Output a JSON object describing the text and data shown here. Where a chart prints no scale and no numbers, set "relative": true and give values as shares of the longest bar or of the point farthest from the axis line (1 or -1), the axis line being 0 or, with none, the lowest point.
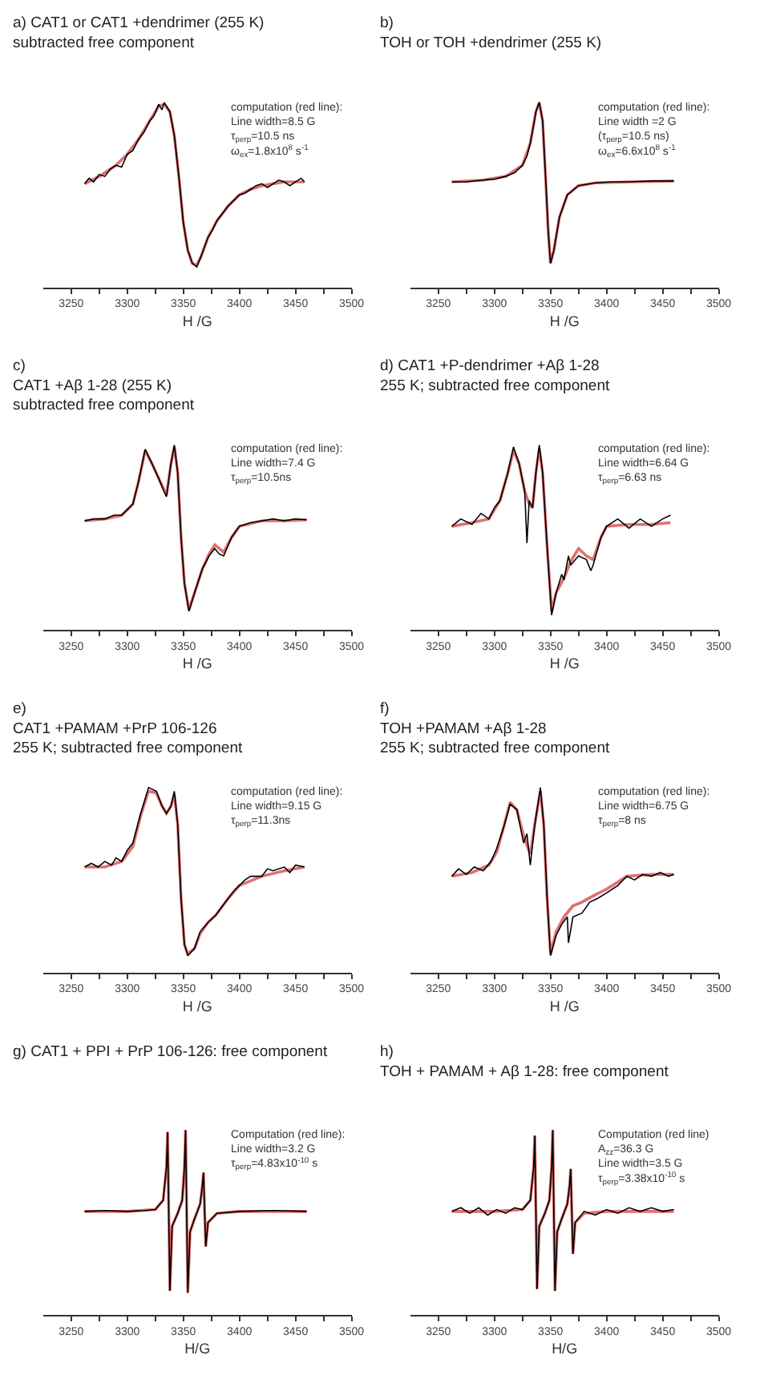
{
  "chart_data": [
    {
      "type": "line",
      "title": "a) CAT1 or CAT1 +dendrimer (255 K)\nsubtracted free component",
      "xlabel": "H /G",
      "relative": true,
      "xlim": [
        3225,
        3500
      ],
      "xticks": [
        3250,
        {
          "value": 3275,
          "label": null
        },
        3300,
        {
          "value": 3325,
          "label": null
        },
        3350,
        {
          "value": 3375,
          "label": null
        },
        3400,
        {
          "value": 3425,
          "label": null
        },
        3450,
        {
          "value": 3475,
          "label": null
        },
        3500
      ],
      "annotations": [
        "computation (red line):\nLine width=8.5 G\nτ$_{perp}$=10.5 ns\nω$_{ex}$=1.8x10$^{8}$ s$^{-1}$"
      ],
      "series": [
        {
          "color": "#000000",
          "x": [
            3262,
            3266,
            3270,
            3275,
            3280,
            3285,
            3290,
            3295,
            3300,
            3305,
            3310,
            3315,
            3320,
            3324,
            3328,
            3331,
            3333,
            3336,
            3338,
            3342,
            3346,
            3350,
            3354,
            3358,
            3362,
            3366,
            3372,
            3376,
            3380,
            3385,
            3390,
            3395,
            3400,
            3405,
            3410,
            3415,
            3420,
            3425,
            3430,
            3435,
            3440,
            3445,
            3450,
            3455,
            3458
          ],
          "values": [
            0.56,
            0.59,
            0.57,
            0.61,
            0.6,
            0.64,
            0.66,
            0.65,
            0.72,
            0.74,
            0.8,
            0.84,
            0.9,
            0.93,
            0.99,
            0.96,
            1.0,
            0.97,
            0.95,
            0.82,
            0.6,
            0.35,
            0.2,
            0.13,
            0.11,
            0.17,
            0.27,
            0.31,
            0.36,
            0.4,
            0.44,
            0.47,
            0.5,
            0.51,
            0.53,
            0.55,
            0.56,
            0.54,
            0.56,
            0.58,
            0.57,
            0.55,
            0.57,
            0.59,
            0.57
          ]
        },
        {
          "color": "#e07070",
          "x": [
            3262,
            3275,
            3290,
            3300,
            3310,
            3320,
            3328,
            3333,
            3338,
            3342,
            3346,
            3350,
            3354,
            3358,
            3362,
            3366,
            3372,
            3380,
            3390,
            3400,
            3410,
            3420,
            3430,
            3440,
            3450,
            3458
          ],
          "values": [
            0.56,
            0.6,
            0.66,
            0.72,
            0.8,
            0.9,
            0.98,
            0.99,
            0.95,
            0.82,
            0.6,
            0.35,
            0.2,
            0.13,
            0.12,
            0.17,
            0.27,
            0.36,
            0.44,
            0.5,
            0.53,
            0.55,
            0.56,
            0.57,
            0.57,
            0.57
          ]
        }
      ]
    },
    {
      "type": "line",
      "title": "b)\nTOH or TOH +dendrimer (255 K)",
      "xlabel": "H /G",
      "relative": true,
      "xlim": [
        3225,
        3500
      ],
      "xticks": [
        3250,
        {
          "value": 3275,
          "label": null
        },
        3300,
        {
          "value": 3325,
          "label": null
        },
        3350,
        {
          "value": 3375,
          "label": null
        },
        3400,
        {
          "value": 3425,
          "label": null
        },
        3450,
        {
          "value": 3475,
          "label": null
        },
        3500
      ],
      "annotations": [
        "computation (red line):\nLine width =2 G\n(τ$_{perp}$=10.5 ns)\nω$_{ex}$=6.6x10$^{8}$ s$^{-1}$"
      ],
      "series": [
        {
          "color": "#000000",
          "x": [
            3262,
            3275,
            3290,
            3300,
            3310,
            3318,
            3325,
            3329,
            3332,
            3335,
            3337,
            3340,
            3343,
            3346,
            3348,
            3350,
            3353,
            3358,
            3365,
            3375,
            3390,
            3405,
            3420,
            3440,
            3460
          ],
          "values": [
            0.57,
            0.57,
            0.58,
            0.585,
            0.6,
            0.62,
            0.66,
            0.71,
            0.78,
            0.88,
            0.95,
            1.0,
            0.9,
            0.55,
            0.3,
            0.13,
            0.2,
            0.38,
            0.5,
            0.55,
            0.565,
            0.57,
            0.57,
            0.575,
            0.575
          ]
        },
        {
          "color": "#e07070",
          "x": [
            3262,
            3290,
            3310,
            3325,
            3332,
            3337,
            3340,
            3343,
            3346,
            3348,
            3350,
            3353,
            3358,
            3365,
            3375,
            3390,
            3420,
            3460
          ],
          "values": [
            0.57,
            0.58,
            0.6,
            0.66,
            0.78,
            0.95,
            1.0,
            0.9,
            0.55,
            0.3,
            0.13,
            0.2,
            0.38,
            0.5,
            0.55,
            0.565,
            0.57,
            0.575
          ]
        }
      ]
    },
    {
      "type": "line",
      "title": "c)\nCAT1 +Aβ 1-28 (255 K)\nsubtracted free component",
      "xlabel": "H /G",
      "relative": true,
      "xlim": [
        3225,
        3500
      ],
      "xticks": [
        3250,
        {
          "value": 3275,
          "label": null
        },
        3300,
        {
          "value": 3325,
          "label": null
        },
        3350,
        {
          "value": 3375,
          "label": null
        },
        3400,
        {
          "value": 3425,
          "label": null
        },
        3450,
        {
          "value": 3475,
          "label": null
        },
        3500
      ],
      "annotations": [
        "computation (red line):\nLine width=7.4 G\nτ$_{perp}$=10.5ns"
      ],
      "series": [
        {
          "color": "#000000",
          "x": [
            3262,
            3270,
            3280,
            3288,
            3295,
            3300,
            3305,
            3310,
            3316,
            3322,
            3328,
            3332,
            3335,
            3339,
            3342,
            3345,
            3348,
            3351,
            3355,
            3360,
            3367,
            3373,
            3378,
            3382,
            3386,
            3393,
            3400,
            3410,
            3420,
            3430,
            3440,
            3450,
            3460
          ],
          "values": [
            0.59,
            0.6,
            0.6,
            0.62,
            0.62,
            0.65,
            0.68,
            0.8,
            0.977,
            0.9,
            0.82,
            0.76,
            0.72,
            0.9,
            1.0,
            0.85,
            0.5,
            0.25,
            0.1,
            0.2,
            0.33,
            0.4,
            0.44,
            0.41,
            0.4,
            0.5,
            0.56,
            0.58,
            0.59,
            0.6,
            0.59,
            0.6,
            0.595
          ]
        },
        {
          "color": "#e07070",
          "x": [
            3262,
            3280,
            3295,
            3305,
            3310,
            3316,
            3322,
            3328,
            3335,
            3339,
            3342,
            3345,
            3348,
            3351,
            3355,
            3360,
            3367,
            3373,
            3378,
            3386,
            3393,
            3400,
            3420,
            3440,
            3460
          ],
          "values": [
            0.59,
            0.6,
            0.62,
            0.68,
            0.8,
            0.97,
            0.9,
            0.82,
            0.73,
            0.9,
            0.99,
            0.85,
            0.5,
            0.25,
            0.11,
            0.2,
            0.33,
            0.41,
            0.46,
            0.42,
            0.5,
            0.56,
            0.59,
            0.59,
            0.595
          ]
        }
      ]
    },
    {
      "type": "line",
      "title": "d) CAT1 +P-dendrimer +Aβ 1-28\n255 K; subtracted free component",
      "xlabel": "H /G",
      "relative": true,
      "xlim": [
        3225,
        3500
      ],
      "xticks": [
        3250,
        {
          "value": 3275,
          "label": null
        },
        3300,
        {
          "value": 3325,
          "label": null
        },
        3350,
        {
          "value": 3375,
          "label": null
        },
        3400,
        {
          "value": 3425,
          "label": null
        },
        3450,
        {
          "value": 3475,
          "label": null
        },
        3500
      ],
      "annotations": [
        "computation (red line):\nLine width=6.64 G\nτ$_{perp}$=6.63 ns"
      ],
      "series": [
        {
          "color": "#000000",
          "x": [
            3262,
            3270,
            3280,
            3288,
            3295,
            3300,
            3305,
            3312,
            3317,
            3322,
            3327,
            3329,
            3331,
            3334,
            3337,
            3340,
            3343,
            3347,
            3351,
            3355,
            3360,
            3362,
            3366,
            3368,
            3375,
            3382,
            3386,
            3388,
            3395,
            3400,
            3410,
            3420,
            3430,
            3440,
            3450,
            3457
          ],
          "values": [
            0.56,
            0.6,
            0.57,
            0.63,
            0.6,
            0.66,
            0.7,
            0.85,
            0.99,
            0.9,
            0.75,
            0.47,
            0.7,
            0.66,
            0.85,
            1.0,
            0.85,
            0.45,
            0.08,
            0.2,
            0.3,
            0.27,
            0.4,
            0.35,
            0.4,
            0.38,
            0.32,
            0.35,
            0.5,
            0.56,
            0.6,
            0.55,
            0.6,
            0.56,
            0.6,
            0.62
          ]
        },
        {
          "color": "#e07070",
          "x": [
            3262,
            3280,
            3295,
            3305,
            3312,
            3317,
            3322,
            3327,
            3331,
            3334,
            3337,
            3340,
            3343,
            3347,
            3351,
            3355,
            3362,
            3368,
            3375,
            3382,
            3388,
            3395,
            3400,
            3420,
            3440,
            3457
          ],
          "values": [
            0.56,
            0.58,
            0.6,
            0.7,
            0.85,
            0.97,
            0.9,
            0.75,
            0.68,
            0.66,
            0.85,
            0.98,
            0.85,
            0.45,
            0.1,
            0.2,
            0.28,
            0.37,
            0.44,
            0.4,
            0.38,
            0.5,
            0.56,
            0.57,
            0.57,
            0.58
          ]
        }
      ]
    },
    {
      "type": "line",
      "title": "e)\nCAT1 +PAMAM +PrP 106-126\n255 K; subtracted free component",
      "xlabel": "H /G",
      "relative": true,
      "xlim": [
        3225,
        3500
      ],
      "xticks": [
        3250,
        {
          "value": 3275,
          "label": null
        },
        3300,
        {
          "value": 3325,
          "label": null
        },
        3350,
        {
          "value": 3375,
          "label": null
        },
        3400,
        {
          "value": 3425,
          "label": null
        },
        3450,
        {
          "value": 3475,
          "label": null
        },
        3500
      ],
      "annotations": [
        "computation (red line):\nLine width=9.15 G\nτ$_{perp}$=11.3ns"
      ],
      "series": [
        {
          "color": "#000000",
          "x": [
            3262,
            3268,
            3274,
            3280,
            3286,
            3290,
            3295,
            3300,
            3305,
            3312,
            3319,
            3326,
            3331,
            3335,
            3339,
            3342,
            3345,
            3348,
            3351,
            3354,
            3360,
            3365,
            3372,
            3379,
            3385,
            3390,
            3395,
            3400,
            3405,
            3410,
            3420,
            3425,
            3430,
            3440,
            3445,
            3450,
            3458
          ],
          "values": [
            0.57,
            0.59,
            0.57,
            0.6,
            0.58,
            0.62,
            0.6,
            0.66,
            0.7,
            0.86,
            1.0,
            0.98,
            0.9,
            0.86,
            0.9,
            0.98,
            0.8,
            0.4,
            0.15,
            0.09,
            0.13,
            0.22,
            0.27,
            0.31,
            0.36,
            0.4,
            0.44,
            0.47,
            0.5,
            0.52,
            0.52,
            0.56,
            0.55,
            0.57,
            0.54,
            0.58,
            0.57
          ]
        },
        {
          "color": "#e07070",
          "x": [
            3262,
            3280,
            3295,
            3305,
            3312,
            3319,
            3326,
            3331,
            3335,
            3339,
            3342,
            3345,
            3348,
            3351,
            3354,
            3360,
            3365,
            3372,
            3379,
            3390,
            3400,
            3420,
            3440,
            3458
          ],
          "values": [
            0.57,
            0.57,
            0.6,
            0.68,
            0.85,
            0.98,
            0.97,
            0.9,
            0.86,
            0.9,
            0.96,
            0.8,
            0.4,
            0.15,
            0.1,
            0.13,
            0.21,
            0.27,
            0.31,
            0.4,
            0.47,
            0.52,
            0.55,
            0.57
          ]
        }
      ]
    },
    {
      "type": "line",
      "title": "f)\nTOH +PAMAM +Aβ 1-28\n255 K; subtracted free component",
      "xlabel": "H /G",
      "relative": true,
      "xlim": [
        3225,
        3500
      ],
      "xticks": [
        3250,
        {
          "value": 3275,
          "label": null
        },
        3300,
        {
          "value": 3325,
          "label": null
        },
        3350,
        {
          "value": 3375,
          "label": null
        },
        3400,
        {
          "value": 3425,
          "label": null
        },
        3450,
        {
          "value": 3475,
          "label": null
        },
        3500
      ],
      "annotations": [
        "computation (red line):\nLine width=6.75 G\nτ$_{perp}$=8 ns"
      ],
      "series": [
        {
          "color": "#000000",
          "x": [
            3262,
            3268,
            3275,
            3282,
            3290,
            3297,
            3302,
            3308,
            3314,
            3320,
            3326,
            3329,
            3332,
            3336,
            3341,
            3344,
            3347,
            3350,
            3355,
            3360,
            3365,
            3366,
            3370,
            3378,
            3385,
            3392,
            3400,
            3410,
            3418,
            3425,
            3432,
            3440,
            3448,
            3455,
            3460
          ],
          "values": [
            0.52,
            0.56,
            0.53,
            0.57,
            0.55,
            0.6,
            0.67,
            0.78,
            0.91,
            0.88,
            0.7,
            0.75,
            0.58,
            0.8,
            1.0,
            0.8,
            0.4,
            0.09,
            0.2,
            0.26,
            0.3,
            0.16,
            0.3,
            0.32,
            0.38,
            0.4,
            0.43,
            0.47,
            0.52,
            0.5,
            0.53,
            0.52,
            0.54,
            0.52,
            0.53
          ]
        },
        {
          "color": "#e07070",
          "x": [
            3262,
            3280,
            3295,
            3302,
            3308,
            3314,
            3320,
            3326,
            3332,
            3336,
            3341,
            3344,
            3347,
            3350,
            3355,
            3362,
            3370,
            3378,
            3390,
            3400,
            3418,
            3440,
            3460
          ],
          "values": [
            0.52,
            0.54,
            0.58,
            0.65,
            0.78,
            0.92,
            0.88,
            0.74,
            0.64,
            0.8,
            0.98,
            0.8,
            0.4,
            0.1,
            0.22,
            0.3,
            0.36,
            0.38,
            0.42,
            0.45,
            0.52,
            0.53,
            0.53
          ]
        }
      ]
    },
    {
      "type": "line",
      "title": "g) CAT1 + PPI + PrP 106-126: free component",
      "xlabel": "H/G",
      "relative": true,
      "xlim": [
        3225,
        3500
      ],
      "xticks": [
        3250,
        {
          "value": 3275,
          "label": null
        },
        3300,
        {
          "value": 3325,
          "label": null
        },
        3350,
        {
          "value": 3375,
          "label": null
        },
        3400,
        {
          "value": 3425,
          "label": null
        },
        3450,
        {
          "value": 3475,
          "label": null
        },
        3500
      ],
      "annotations": [
        "Computation (red line):\nLine width=3.2 G\nτ$_{perp}$=4.83x10$^{-10}$ s"
      ],
      "series": [
        {
          "color": "#000000",
          "x": [
            3262,
            3280,
            3300,
            3315,
            3325,
            3332,
            3335,
            3336,
            3337,
            3338,
            3340,
            3345,
            3349,
            3351,
            3352,
            3353,
            3354,
            3356,
            3360,
            3365,
            3367,
            3368,
            3369,
            3370,
            3372,
            3380,
            3400,
            3430,
            3460
          ],
          "values": [
            0.56,
            0.565,
            0.56,
            0.565,
            0.57,
            0.62,
            0.8,
            0.99,
            0.56,
            0.13,
            0.48,
            0.55,
            0.62,
            0.8,
            1.0,
            0.56,
            0.12,
            0.45,
            0.52,
            0.6,
            0.7,
            0.77,
            0.56,
            0.37,
            0.5,
            0.55,
            0.56,
            0.565,
            0.56
          ]
        },
        {
          "color": "#e07070",
          "x": [
            3262,
            3300,
            3325,
            3332,
            3335,
            3336,
            3337,
            3338,
            3340,
            3345,
            3349,
            3351,
            3352,
            3353,
            3354,
            3356,
            3360,
            3365,
            3367,
            3368,
            3369,
            3370,
            3372,
            3380,
            3400,
            3460
          ],
          "values": [
            0.56,
            0.56,
            0.57,
            0.62,
            0.8,
            0.99,
            0.56,
            0.13,
            0.48,
            0.55,
            0.62,
            0.8,
            1.0,
            0.56,
            0.12,
            0.45,
            0.52,
            0.6,
            0.7,
            0.77,
            0.56,
            0.37,
            0.5,
            0.55,
            0.56,
            0.56
          ]
        }
      ]
    },
    {
      "type": "line",
      "title": "h)\nTOH + PAMAM + Aβ 1-28: free component",
      "xlabel": "H/G",
      "relative": true,
      "xlim": [
        3225,
        3500
      ],
      "xticks": [
        3250,
        {
          "value": 3275,
          "label": null
        },
        3300,
        {
          "value": 3325,
          "label": null
        },
        3350,
        {
          "value": 3375,
          "label": null
        },
        3400,
        {
          "value": 3425,
          "label": null
        },
        3450,
        {
          "value": 3475,
          "label": null
        },
        3500
      ],
      "annotations": [
        "Computation (red line)\nA$_{zz}$=36.3 G\nLine width=3.5 G\nτ$_{perp}$=3.38x10$^{-10}$ s"
      ],
      "series": [
        {
          "color": "#000000",
          "x": [
            3262,
            3270,
            3278,
            3286,
            3294,
            3302,
            3310,
            3318,
            3325,
            3332,
            3335,
            3336,
            3337,
            3338,
            3340,
            3345,
            3349,
            3351,
            3352,
            3353,
            3354,
            3356,
            3360,
            3365,
            3367,
            3368,
            3369,
            3370,
            3372,
            3380,
            3390,
            3400,
            3410,
            3420,
            3430,
            3440,
            3450,
            3460
          ],
          "values": [
            0.56,
            0.58,
            0.55,
            0.58,
            0.54,
            0.57,
            0.55,
            0.58,
            0.57,
            0.62,
            0.8,
            0.97,
            0.56,
            0.14,
            0.48,
            0.55,
            0.62,
            0.8,
            1.0,
            0.56,
            0.13,
            0.45,
            0.52,
            0.6,
            0.7,
            0.79,
            0.56,
            0.33,
            0.5,
            0.56,
            0.54,
            0.57,
            0.55,
            0.58,
            0.56,
            0.58,
            0.56,
            0.57
          ]
        },
        {
          "color": "#e07070",
          "x": [
            3262,
            3300,
            3325,
            3332,
            3335,
            3336,
            3337,
            3338,
            3340,
            3345,
            3349,
            3351,
            3352,
            3353,
            3354,
            3356,
            3360,
            3365,
            3367,
            3368,
            3369,
            3370,
            3372,
            3380,
            3400,
            3460
          ],
          "values": [
            0.56,
            0.56,
            0.57,
            0.62,
            0.8,
            0.97,
            0.56,
            0.14,
            0.48,
            0.55,
            0.62,
            0.8,
            1.0,
            0.56,
            0.13,
            0.45,
            0.52,
            0.6,
            0.7,
            0.79,
            0.56,
            0.33,
            0.5,
            0.55,
            0.56,
            0.56
          ]
        }
      ]
    }
  ]
}
